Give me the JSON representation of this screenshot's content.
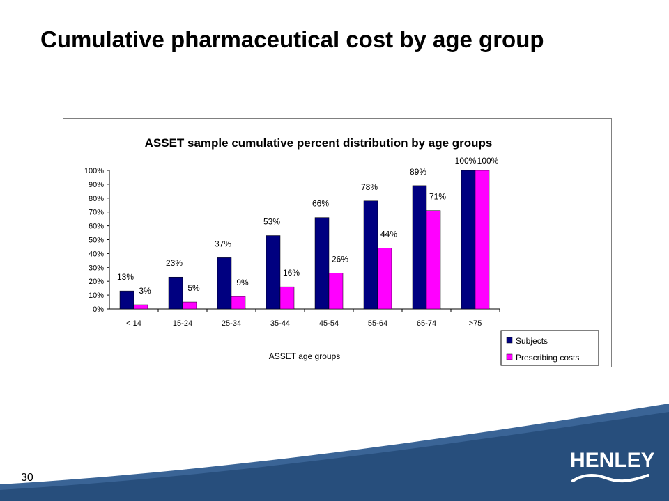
{
  "slide": {
    "title": "Cumulative pharmaceutical cost by age group",
    "page_number": "30",
    "logo_text": "HENLEY",
    "colors": {
      "band": "#274e7c",
      "band_light": "#3a6496",
      "logo_text": "#ffffff"
    }
  },
  "chart_data": {
    "type": "bar",
    "title": "ASSET sample cumulative percent distribution by age groups",
    "xlabel": "ASSET age groups",
    "ylabel": "",
    "categories": [
      "< 14",
      "15-24",
      "25-34",
      "35-44",
      "45-54",
      "55-64",
      "65-74",
      ">75"
    ],
    "series": [
      {
        "name": "Subjects",
        "color": "#000080",
        "values": [
          13,
          23,
          37,
          53,
          66,
          78,
          89,
          100
        ],
        "labels": [
          "13%",
          "23%",
          "37%",
          "53%",
          "66%",
          "78%",
          "89%",
          "100%"
        ]
      },
      {
        "name": "Prescribing costs",
        "color": "#ff00ff",
        "values": [
          3,
          5,
          9,
          16,
          26,
          44,
          71,
          100
        ],
        "labels": [
          "3%",
          "5%",
          "9%",
          "16%",
          "26%",
          "44%",
          "71%",
          "100%"
        ]
      }
    ],
    "ylim": [
      0,
      100
    ],
    "yticks": [
      "0%",
      "10%",
      "20%",
      "30%",
      "40%",
      "50%",
      "60%",
      "70%",
      "80%",
      "90%",
      "100%"
    ],
    "grid": false,
    "legend": "bottom-right"
  }
}
